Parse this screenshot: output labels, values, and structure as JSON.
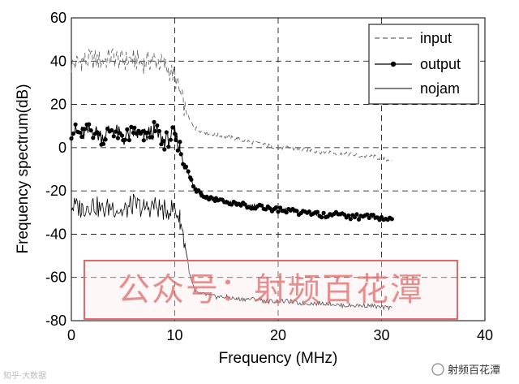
{
  "chart_data": {
    "type": "line",
    "title": "",
    "xlabel": "Frequency (MHz)",
    "ylabel": "Frequency spectrum(dB)",
    "xlim": [
      0,
      40
    ],
    "ylim": [
      -80,
      60
    ],
    "xticks": [
      0,
      10,
      20,
      30,
      40
    ],
    "yticks": [
      -80,
      -60,
      -40,
      -20,
      0,
      20,
      40,
      60
    ],
    "grid": "dashed at major ticks",
    "legend_position": "top-right",
    "series": [
      {
        "name": "input",
        "style": "dashed",
        "color": "#666666",
        "x": [
          0,
          1,
          2,
          3,
          4,
          5,
          6,
          7,
          8,
          9,
          10,
          10.5,
          11,
          11.5,
          12,
          13,
          14,
          15,
          16,
          17,
          18,
          19,
          20,
          21,
          22,
          23,
          24,
          25,
          26,
          27,
          28,
          29,
          30,
          31
        ],
        "y": [
          38,
          40,
          41,
          40,
          42,
          40,
          41,
          39,
          41,
          38,
          33,
          25,
          18,
          12,
          9,
          7,
          6,
          5,
          4,
          3,
          2,
          1,
          0,
          0,
          -1,
          -1,
          -2,
          -2,
          -3,
          -3,
          -4,
          -4,
          -5,
          -6
        ]
      },
      {
        "name": "output",
        "style": "line with dot markers",
        "color": "#000000",
        "x": [
          0,
          1,
          2,
          3,
          4,
          5,
          6,
          7,
          8,
          9,
          10,
          10.5,
          11,
          11.5,
          12,
          12.5,
          13,
          14,
          15,
          16,
          17,
          18,
          19,
          20,
          21,
          22,
          23,
          24,
          25,
          26,
          27,
          28,
          29,
          30,
          31
        ],
        "y": [
          8,
          6,
          8,
          5,
          9,
          4,
          7,
          5,
          8,
          3,
          6,
          0,
          -8,
          -14,
          -19,
          -21,
          -23,
          -24,
          -25,
          -26,
          -27,
          -27,
          -28,
          -29,
          -29,
          -30,
          -30,
          -31,
          -31,
          -31,
          -32,
          -32,
          -32,
          -33,
          -33
        ]
      },
      {
        "name": "nojam",
        "style": "solid",
        "color": "#000000",
        "x": [
          0,
          1,
          2,
          3,
          4,
          5,
          6,
          7,
          8,
          9,
          10,
          10.5,
          11,
          11.5,
          12,
          13,
          14,
          15,
          16,
          17,
          18,
          19,
          20,
          21,
          22,
          23,
          24,
          25,
          26,
          27,
          28,
          29,
          30,
          31
        ],
        "y": [
          -27,
          -28,
          -26,
          -29,
          -27,
          -30,
          -26,
          -28,
          -27,
          -29,
          -28,
          -33,
          -45,
          -60,
          -67,
          -68,
          -69,
          -69,
          -70,
          -70,
          -70,
          -71,
          -71,
          -71,
          -72,
          -72,
          -72,
          -72,
          -73,
          -73,
          -73,
          -73,
          -74,
          -74
        ]
      }
    ]
  },
  "watermark": {
    "text": "公众号：射频百花潭",
    "color": "#e06a6a"
  },
  "corner_right": "射频百花潭",
  "corner_left": "知乎·大数据",
  "colors": {
    "grid": "#000000",
    "background": "#ffffff"
  }
}
